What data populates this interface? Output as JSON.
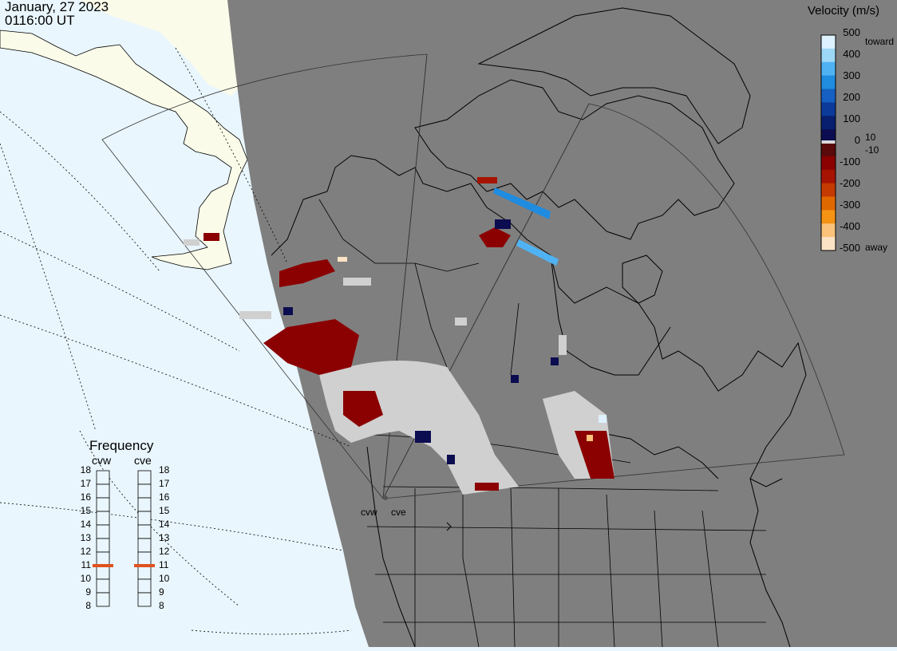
{
  "title": {
    "date": "January, 27 2023",
    "time": "0116:00 UT"
  },
  "colorbar": {
    "title": "Velocity (m/s)",
    "ticks": [
      "500",
      "400",
      "300",
      "200",
      "100",
      "0",
      "-100",
      "-200",
      "-300",
      "-400",
      "-500"
    ],
    "extra_ticks": [
      "10",
      "-10"
    ],
    "toward_label": "toward",
    "away_label": "away",
    "colors": [
      "#ddf1ff",
      "#9ed8f7",
      "#4fb3f3",
      "#1f8ce0",
      "#1560c2",
      "#0b3a9a",
      "#071f6e",
      "#0c0c50",
      "#5a0a0a",
      "#8b0000",
      "#a61300",
      "#c43a00",
      "#e06800",
      "#f59315",
      "#fbc27a",
      "#fde3c5"
    ]
  },
  "frequency_panel": {
    "title": "Frequency",
    "radars": [
      {
        "name": "cvw",
        "frequency_mhz": 11
      },
      {
        "name": "cve",
        "frequency_mhz": 11
      }
    ],
    "scale": [
      "18",
      "17",
      "16",
      "15",
      "14",
      "13",
      "12",
      "11",
      "10",
      "9",
      "8"
    ],
    "marker_color": "#e0521d"
  },
  "map": {
    "radar_site_labels": [
      "cvw",
      "cve"
    ],
    "colors": {
      "ocean": "#e9f6fd",
      "land_day": "#fbfbea",
      "night": "#7f7f7f",
      "ground_scatter": "#d0d0d0",
      "lines": "#000000"
    }
  }
}
